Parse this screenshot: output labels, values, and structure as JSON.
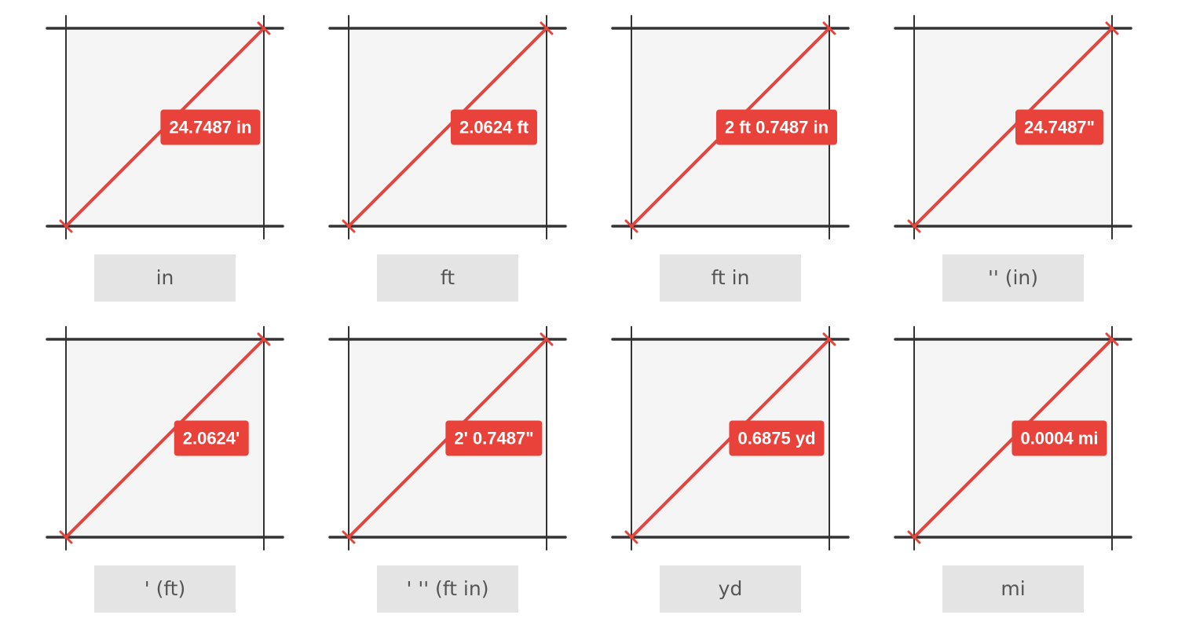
{
  "options": [
    {
      "measurement": "24.7487 in",
      "unit_label": "in"
    },
    {
      "measurement": "2.0624 ft",
      "unit_label": "ft"
    },
    {
      "measurement": "2 ft 0.7487 in",
      "unit_label": "ft in"
    },
    {
      "measurement": "24.7487\"",
      "unit_label": "'' (in)"
    },
    {
      "measurement": "2.0624'",
      "unit_label": "' (ft)"
    },
    {
      "measurement": "2' 0.7487\"",
      "unit_label": "' '' (ft in)"
    },
    {
      "measurement": "0.6875 yd",
      "unit_label": "yd"
    },
    {
      "measurement": "0.0004 mi",
      "unit_label": "mi"
    }
  ],
  "colors": {
    "measure_line": "#e8423a",
    "frame_line": "#333333",
    "square_fill": "#f5f5f5",
    "button_bg": "#e4e4e4",
    "button_text": "#555555"
  }
}
